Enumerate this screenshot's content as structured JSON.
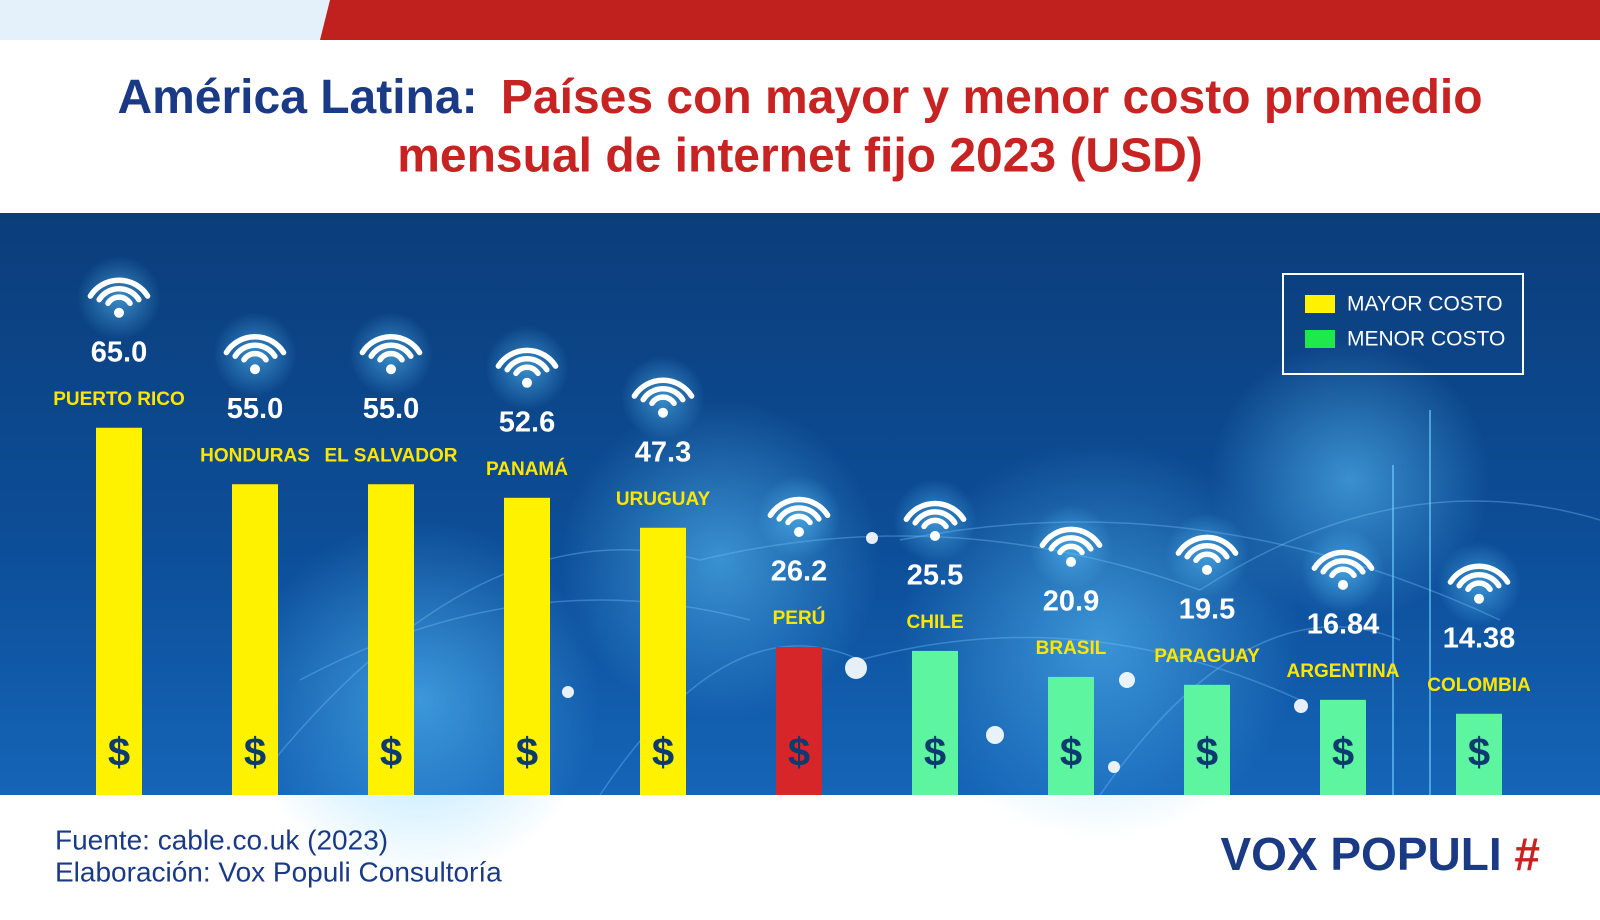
{
  "chart_data": {
    "type": "bar",
    "title": {
      "lead": "América Latina:",
      "lines": [
        "Países con mayor y menor costo promedio",
        "mensual de internet fijo 2023 (USD)"
      ]
    },
    "categories": [
      "PUERTO RICO",
      "HONDURAS",
      "EL SALVADOR",
      "PANAMÁ",
      "URUGUAY",
      "PERÚ",
      "CHILE",
      "BRASIL",
      "PARAGUAY",
      "ARGENTINA",
      "COLOMBIA"
    ],
    "values": [
      65.0,
      55.0,
      55.0,
      52.6,
      47.3,
      26.2,
      25.5,
      20.9,
      19.5,
      16.84,
      14.38
    ],
    "value_labels": [
      "65.0",
      "55.0",
      "55.0",
      "52.6",
      "47.3",
      "26.2",
      "25.5",
      "20.9",
      "19.5",
      "16.84",
      "14.38"
    ],
    "colors": [
      "#fff200",
      "#fff200",
      "#fff200",
      "#fff200",
      "#fff200",
      "#d7262a",
      "#5ef5a0",
      "#5ef5a0",
      "#5ef5a0",
      "#5ef5a0",
      "#5ef5a0"
    ],
    "bar_symbol": "$",
    "legend": [
      {
        "name": "MAYOR COSTO",
        "color": "#fff200"
      },
      {
        "name": "MENOR COSTO",
        "color": "#1ee84a"
      }
    ],
    "legend_position": "upper right",
    "source": "Fuente: cable.co.uk (2023)",
    "credit": "Elaboración: Vox Populi Consultoría",
    "brand": {
      "name": "VOX POPULI",
      "mark": "#"
    }
  }
}
